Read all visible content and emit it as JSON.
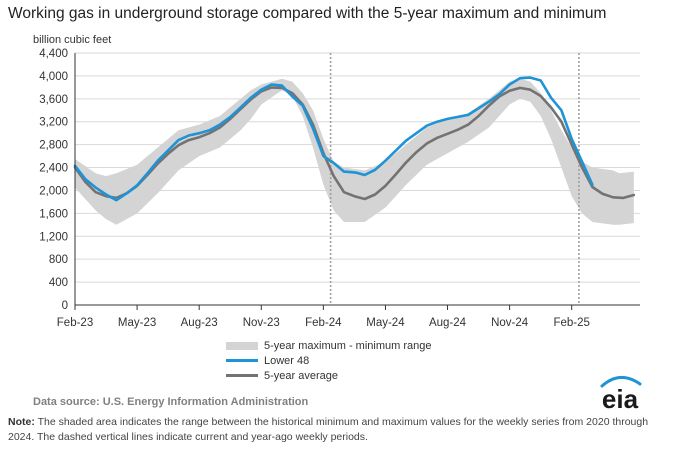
{
  "chart_data": {
    "type": "line",
    "title": "Working gas in underground storage compared with the 5-year maximum and minimum",
    "ylabel": "billion cubic feet",
    "xlabel": "",
    "ylim": [
      0,
      4400
    ],
    "yticks": [
      0,
      400,
      800,
      1200,
      1600,
      2000,
      2400,
      2800,
      3200,
      3600,
      4000,
      4400
    ],
    "ytick_labels": [
      "0",
      "400",
      "800",
      "1,200",
      "1,600",
      "2,000",
      "2,400",
      "2,800",
      "3,200",
      "3,600",
      "4,000",
      "4,400"
    ],
    "xticks": [
      "Feb-23",
      "May-23",
      "Aug-23",
      "Nov-23",
      "Feb-24",
      "May-24",
      "Aug-24",
      "Nov-24",
      "Feb-25"
    ],
    "x_unit": "months since Feb-23",
    "xlim": [
      0,
      27.3
    ],
    "grid": true,
    "range_band": {
      "name": "5-year maximum - minimum range",
      "x": [
        0,
        1,
        1.5,
        2,
        3,
        4,
        5,
        6,
        7,
        8,
        8.5,
        9,
        10,
        10.5,
        11,
        11.5,
        12,
        12.5,
        13,
        14,
        15,
        16,
        17,
        18,
        19,
        20,
        20.5,
        21,
        21.5,
        22,
        22.5,
        23,
        23.5,
        24,
        24.5,
        25,
        26,
        26.3,
        27
      ],
      "max": [
        2550,
        2300,
        2250,
        2300,
        2450,
        2750,
        3050,
        3150,
        3300,
        3600,
        3750,
        3850,
        3950,
        3900,
        3700,
        3400,
        2900,
        2500,
        2400,
        2350,
        2500,
        2800,
        3100,
        3250,
        3350,
        3600,
        3750,
        3900,
        3950,
        3900,
        3700,
        3400,
        3050,
        2750,
        2500,
        2400,
        2350,
        2300,
        2330
      ],
      "min": [
        2050,
        1650,
        1500,
        1400,
        1600,
        1950,
        2350,
        2600,
        2750,
        3050,
        3250,
        3500,
        3750,
        3650,
        3300,
        2750,
        2100,
        1650,
        1450,
        1450,
        1700,
        2100,
        2450,
        2650,
        2850,
        3100,
        3300,
        3500,
        3600,
        3550,
        3300,
        2900,
        2400,
        1900,
        1600,
        1450,
        1400,
        1400,
        1430
      ]
    },
    "series": [
      {
        "name": "Lower 48",
        "color": "#1e93d6",
        "x": [
          0,
          0.5,
          1,
          1.5,
          2,
          2.5,
          3,
          3.5,
          4,
          4.5,
          5,
          5.5,
          6,
          6.5,
          7,
          7.5,
          8,
          8.5,
          9,
          9.5,
          10,
          10.5,
          11,
          11.5,
          12,
          12.5,
          13,
          13.3,
          13.6,
          14,
          14.5,
          15,
          16,
          17,
          17.5,
          18,
          19,
          20,
          20.5,
          21,
          21.5,
          22,
          22.5,
          23,
          23.5,
          24,
          24.5,
          25
        ],
        "values": [
          2430,
          2200,
          2050,
          1930,
          1830,
          1950,
          2090,
          2300,
          2520,
          2700,
          2880,
          2960,
          3000,
          3050,
          3150,
          3280,
          3450,
          3620,
          3760,
          3850,
          3830,
          3640,
          3480,
          3080,
          2600,
          2480,
          2330,
          2320,
          2310,
          2270,
          2360,
          2520,
          2870,
          3130,
          3200,
          3250,
          3320,
          3550,
          3680,
          3850,
          3960,
          3970,
          3920,
          3620,
          3400,
          2900,
          2500,
          2100
        ]
      },
      {
        "name": "5-year average",
        "color": "#737373",
        "x": [
          0,
          0.5,
          1,
          1.5,
          2,
          2.5,
          3,
          3.5,
          4,
          4.5,
          5,
          5.5,
          6,
          6.5,
          7,
          7.5,
          8,
          8.5,
          9,
          9.5,
          10,
          10.5,
          11,
          11.5,
          12,
          12.5,
          13,
          13.5,
          14,
          14.5,
          15,
          15.5,
          16,
          16.5,
          17,
          17.5,
          18,
          18.5,
          19,
          19.5,
          20,
          20.5,
          21,
          21.5,
          22,
          22.5,
          23,
          23.5,
          24,
          24.5,
          25,
          25.5,
          26,
          26.5,
          27
        ],
        "values": [
          2400,
          2150,
          1970,
          1900,
          1870,
          1950,
          2080,
          2270,
          2470,
          2640,
          2790,
          2880,
          2930,
          3000,
          3100,
          3250,
          3420,
          3590,
          3730,
          3800,
          3790,
          3700,
          3500,
          3150,
          2650,
          2250,
          1970,
          1900,
          1850,
          1930,
          2080,
          2280,
          2490,
          2670,
          2820,
          2920,
          2990,
          3060,
          3150,
          3300,
          3480,
          3640,
          3740,
          3790,
          3760,
          3650,
          3450,
          3200,
          2800,
          2400,
          2060,
          1940,
          1880,
          1870,
          1920
        ]
      }
    ],
    "vertical_markers": {
      "x": [
        12.35,
        24.35
      ],
      "style": "dashed"
    },
    "legend": [
      "5-year maximum - minimum range",
      "Lower 48",
      "5-year average"
    ]
  },
  "colors": {
    "band": "#d4d4d4",
    "lower48": "#1e93d6",
    "average": "#737373",
    "grid": "#d9d9d9",
    "axis": "#333333",
    "marker": "#a0a0a0"
  },
  "footer": {
    "source": "Data source:  U.S. Energy Information Administration",
    "note_label": "Note:",
    "note_text": "The shaded area indicates the range between the historical minimum and maximum values for the weekly series from 2020 through 2024. The dashed vertical lines indicate current and year-ago weekly periods.",
    "logo_text": "eia"
  }
}
